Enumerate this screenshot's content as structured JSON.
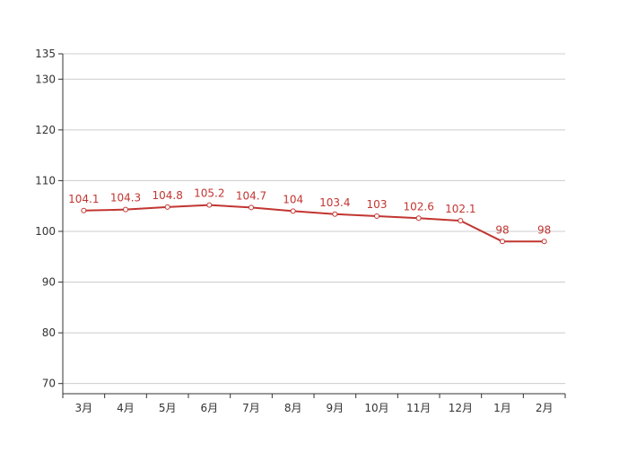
{
  "chart_data": {
    "type": "line",
    "title": "",
    "xlabel": "",
    "ylabel": "",
    "categories": [
      "3月",
      "4月",
      "5月",
      "6月",
      "7月",
      "8月",
      "9月",
      "10月",
      "11月",
      "12月",
      "1月",
      "2月"
    ],
    "series": [
      {
        "values": [
          104.1,
          104.3,
          104.8,
          105.2,
          104.7,
          104,
          103.4,
          103,
          102.6,
          102.1,
          98,
          98
        ],
        "color": "#c23531"
      }
    ],
    "ylim": [
      68,
      135
    ],
    "yticks": [
      70,
      80,
      90,
      100,
      110,
      120,
      130,
      135
    ],
    "grid": true,
    "legend": "none"
  }
}
